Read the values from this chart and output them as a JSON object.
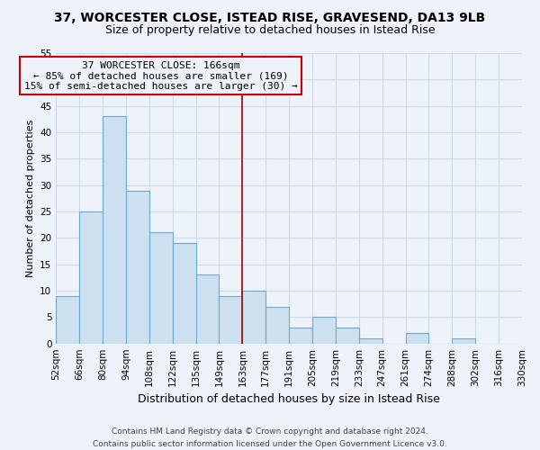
{
  "title": "37, WORCESTER CLOSE, ISTEAD RISE, GRAVESEND, DA13 9LB",
  "subtitle": "Size of property relative to detached houses in Istead Rise",
  "xlabel": "Distribution of detached houses by size in Istead Rise",
  "ylabel": "Number of detached properties",
  "footer_line1": "Contains HM Land Registry data © Crown copyright and database right 2024.",
  "footer_line2": "Contains public sector information licensed under the Open Government Licence v3.0.",
  "bin_labels": [
    "52sqm",
    "66sqm",
    "80sqm",
    "94sqm",
    "108sqm",
    "122sqm",
    "135sqm",
    "149sqm",
    "163sqm",
    "177sqm",
    "191sqm",
    "205sqm",
    "219sqm",
    "233sqm",
    "247sqm",
    "261sqm",
    "274sqm",
    "288sqm",
    "302sqm",
    "316sqm",
    "330sqm"
  ],
  "bar_values": [
    9,
    25,
    43,
    29,
    21,
    19,
    13,
    9,
    10,
    7,
    3,
    5,
    3,
    1,
    0,
    2,
    0,
    1,
    0,
    0
  ],
  "bar_color": "#cce0f0",
  "bar_edge_color": "#6aaacc",
  "ylim": [
    0,
    55
  ],
  "yticks": [
    0,
    5,
    10,
    15,
    20,
    25,
    30,
    35,
    40,
    45,
    50,
    55
  ],
  "vline_x_idx": 8,
  "vline_color": "#aa0000",
  "ann_line1": "37 WORCESTER CLOSE: 166sqm",
  "ann_line2": "← 85% of detached houses are smaller (169)",
  "ann_line3": "15% of semi-detached houses are larger (30) →",
  "ann_box_edge_color": "#cc0000",
  "background_color": "#eef2fa",
  "grid_color": "#d0d8e8",
  "title_fontsize": 10,
  "subtitle_fontsize": 9,
  "xlabel_fontsize": 9,
  "ylabel_fontsize": 8,
  "tick_fontsize": 7.5,
  "ann_fontsize": 8,
  "footer_fontsize": 6.5
}
